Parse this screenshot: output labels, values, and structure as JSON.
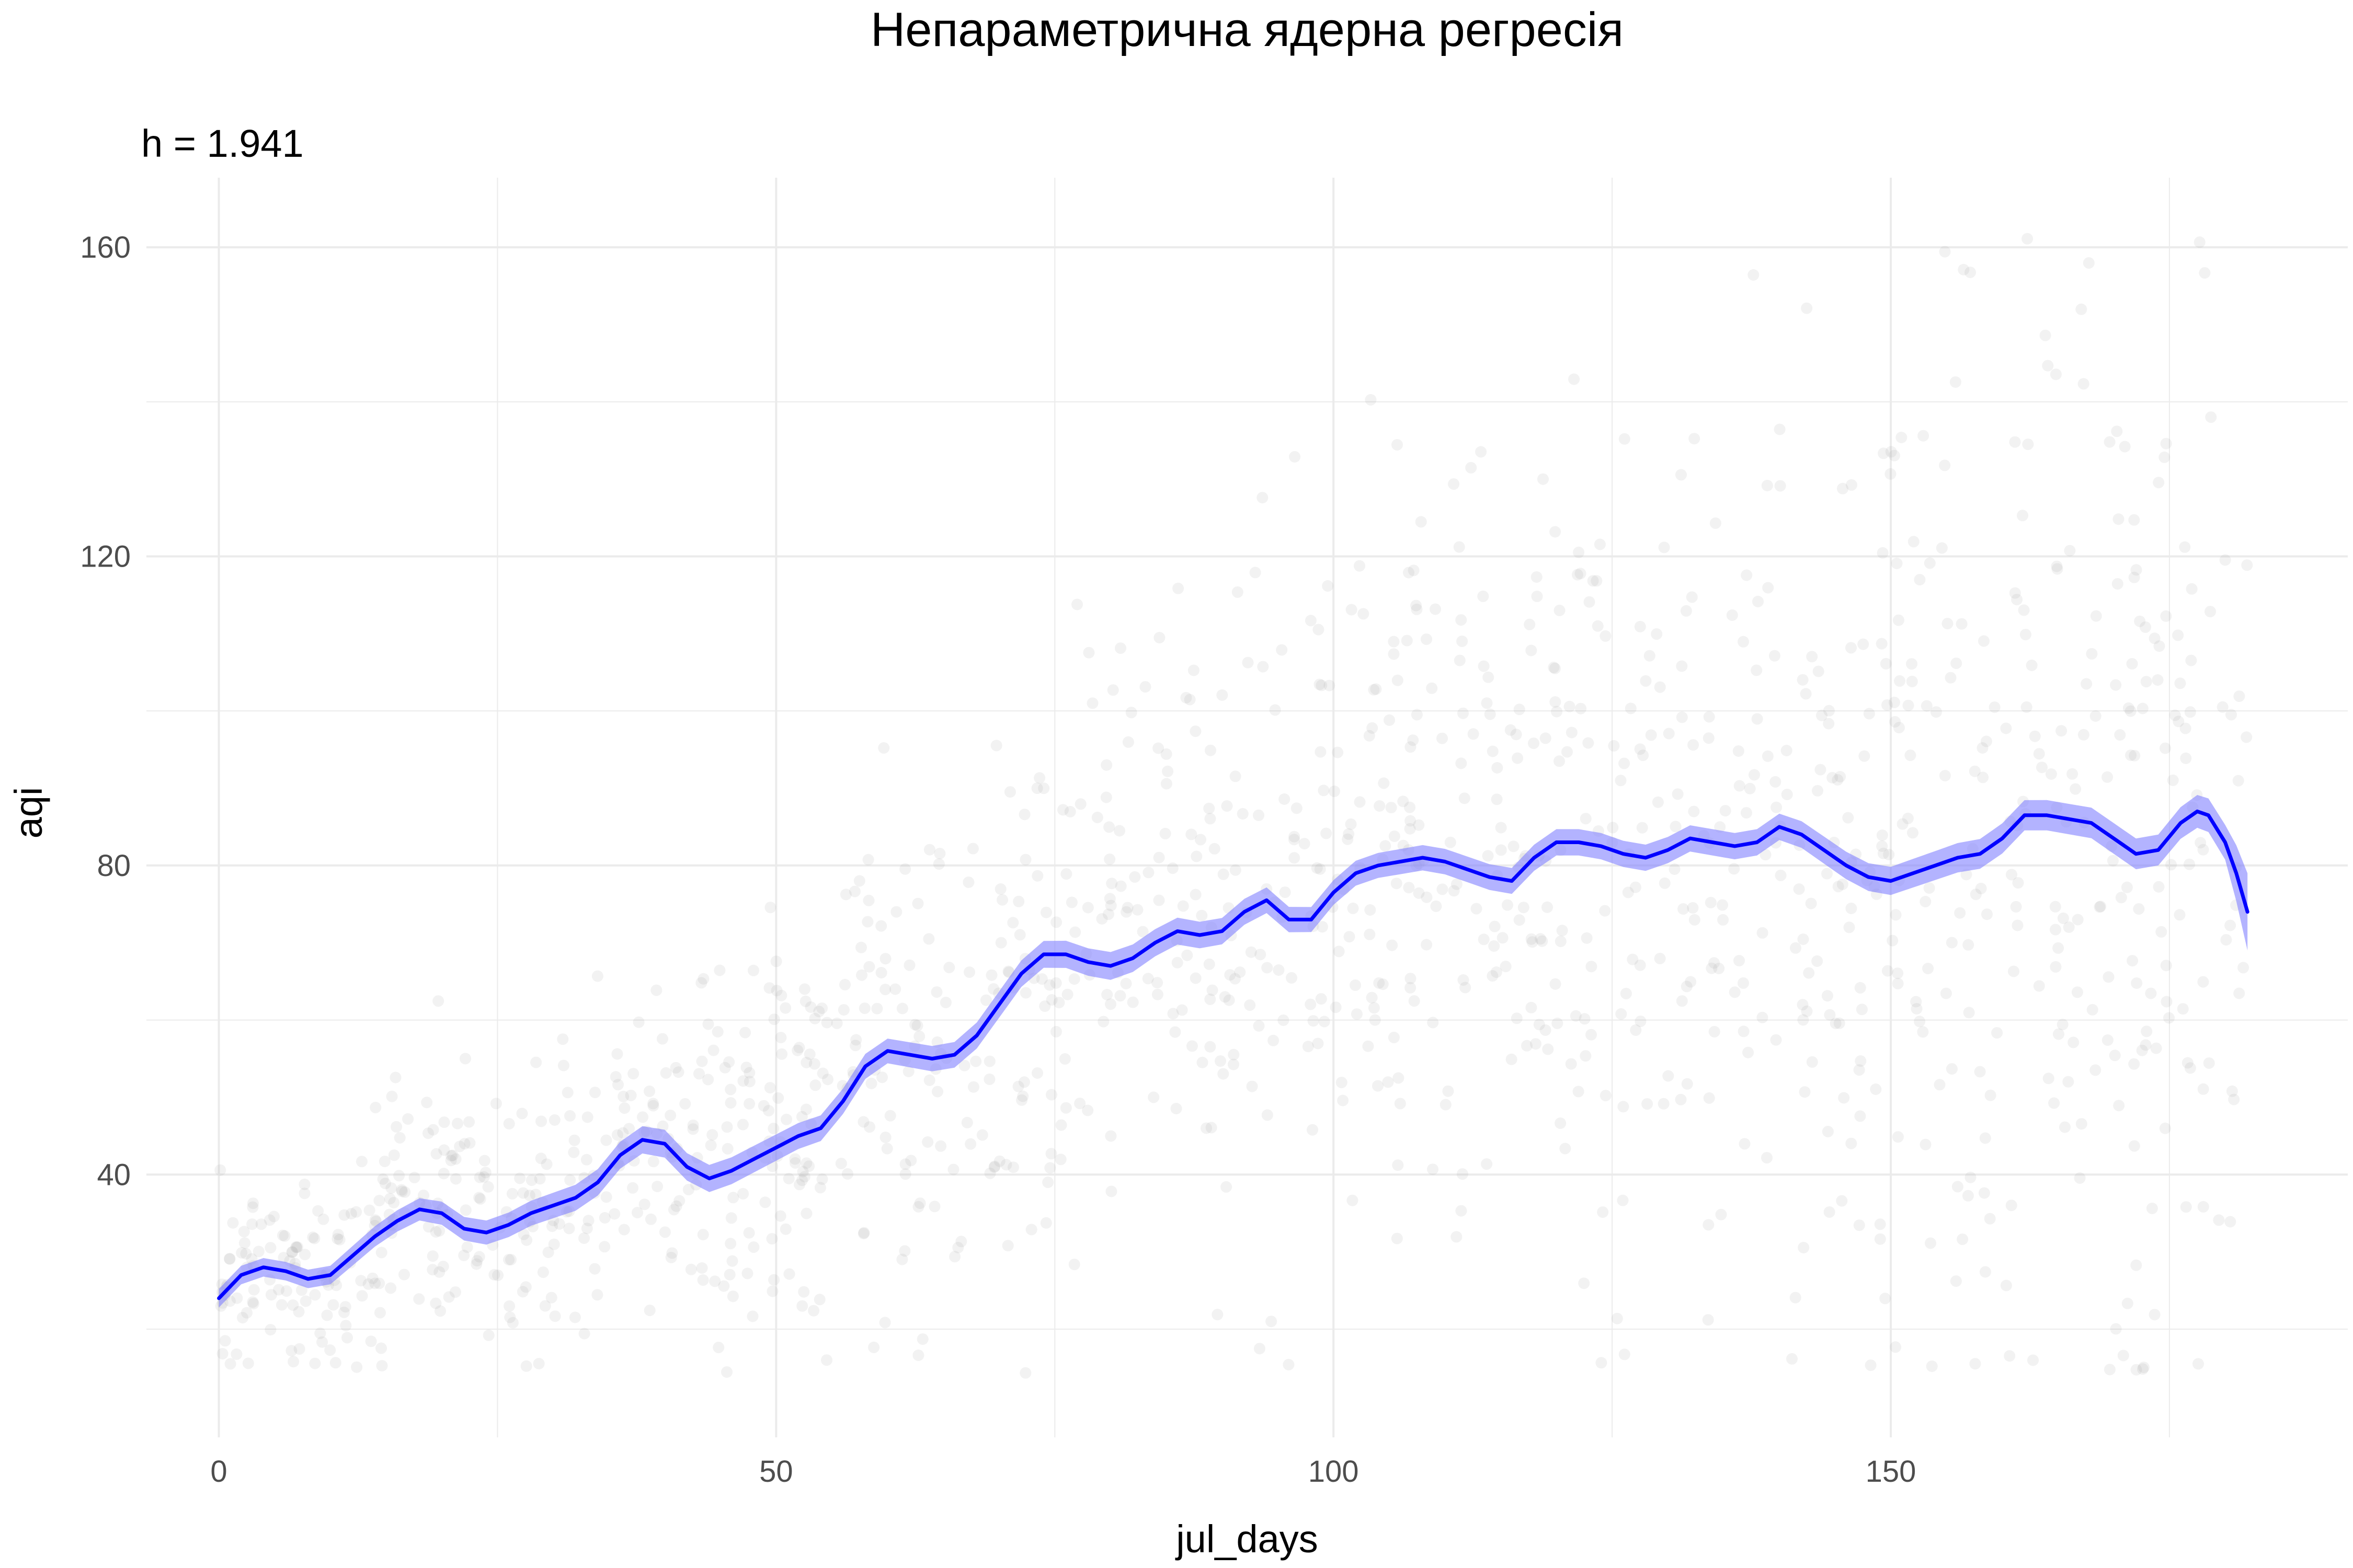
{
  "chart_data": {
    "type": "line",
    "title": "Непараметрична ядерна регресія",
    "subtitle": "h = 1.941",
    "xlabel": "jul_days",
    "ylabel": "aqi",
    "xlim": [
      -6.5,
      191
    ],
    "ylim": [
      6,
      169
    ],
    "x_ticks": [
      0,
      50,
      100,
      150
    ],
    "y_ticks": [
      40,
      80,
      120,
      160
    ],
    "x_minor": [
      25,
      75,
      125,
      175
    ],
    "y_minor": [
      20,
      60,
      100,
      140
    ],
    "grid": true,
    "legend": "none",
    "colors": {
      "line": "#0000ff",
      "ribbon": "#8080ff",
      "points": "#a6a6a6",
      "grid": "#ebebeb"
    },
    "series": [
      {
        "kind": "kernel-regression-fit",
        "x": [
          0,
          2,
          4,
          6,
          8,
          10,
          12,
          14,
          16,
          18,
          20,
          22,
          24,
          26,
          28,
          30,
          32,
          34,
          36,
          38,
          40,
          42,
          44,
          46,
          48,
          50,
          52,
          54,
          56,
          58,
          60,
          62,
          64,
          66,
          68,
          70,
          72,
          74,
          76,
          78,
          80,
          82,
          84,
          86,
          88,
          90,
          92,
          94,
          96,
          98,
          100,
          102,
          104,
          106,
          108,
          110,
          112,
          114,
          116,
          118,
          120,
          122,
          124,
          126,
          128,
          130,
          132,
          134,
          136,
          138,
          140,
          142,
          144,
          146,
          148,
          150,
          152,
          154,
          156,
          158,
          160,
          162,
          164,
          166,
          168,
          170,
          172,
          174,
          176,
          177.5,
          178.5,
          180,
          181,
          182
        ],
        "y": [
          24,
          27,
          28,
          27.5,
          26.5,
          27,
          29.5,
          32,
          34,
          35.5,
          35,
          33,
          32.5,
          33.5,
          35,
          36,
          37,
          39,
          42.5,
          44.5,
          44,
          41,
          39.5,
          40.5,
          42,
          43.5,
          45,
          46,
          49.5,
          54,
          56,
          55.5,
          55,
          55.5,
          58,
          62,
          66,
          68.5,
          68.5,
          67.5,
          67,
          68,
          70,
          71.5,
          71,
          71.5,
          74,
          75.5,
          73,
          73,
          76.5,
          79,
          80,
          80.5,
          81,
          80.5,
          79.5,
          78.5,
          78,
          81,
          83,
          83,
          82.5,
          81.5,
          81,
          82,
          83.5,
          83,
          82.5,
          83,
          85,
          84,
          82,
          80,
          78.5,
          78,
          79,
          80,
          81,
          81.5,
          83.5,
          86.5,
          86.5,
          86,
          85.5,
          83.5,
          81.5,
          82,
          85.5,
          87,
          86.5,
          83,
          79,
          74
        ]
      },
      {
        "kind": "confidence-band",
        "x": [
          0,
          10,
          20,
          40,
          60,
          80,
          100,
          120,
          140,
          160,
          175,
          180,
          182
        ],
        "upper": [
          25.2,
          28.2,
          36.5,
          46,
          57.6,
          69,
          74.5,
          84.7,
          86.7,
          84.6,
          83.5,
          85,
          79
        ],
        "lower": [
          22.8,
          25.8,
          33.5,
          42.4,
          54.4,
          65.4,
          71.3,
          81.3,
          83.3,
          80.7,
          79.5,
          80.5,
          69
        ]
      }
    ],
    "points": {
      "count": 1400,
      "note_hidden": true
    }
  }
}
